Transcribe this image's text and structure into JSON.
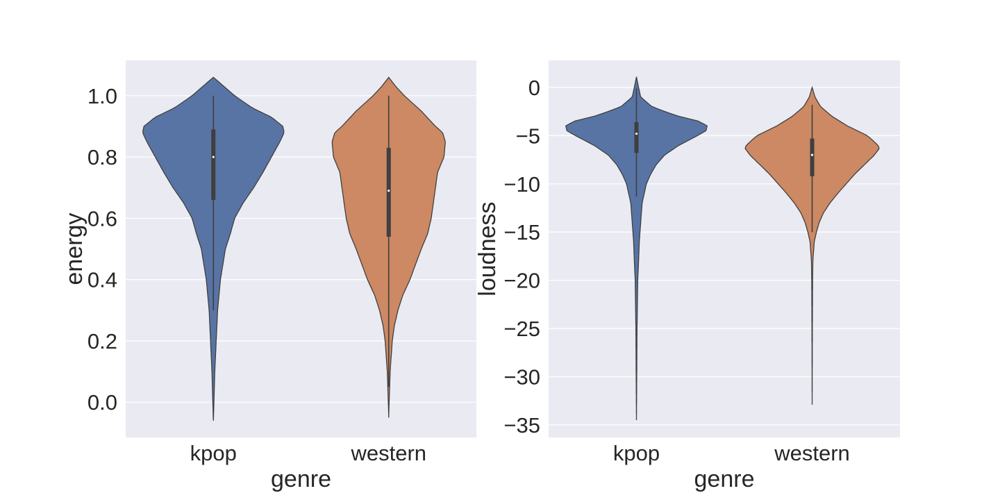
{
  "chart_data": [
    {
      "type": "violin",
      "xlabel": "genre",
      "ylabel": "energy",
      "ylim": [
        -0.115,
        1.115
      ],
      "yticks": [
        0.0,
        0.2,
        0.4,
        0.6,
        0.8,
        1.0
      ],
      "ytick_labels": [
        "0.0",
        "0.2",
        "0.4",
        "0.6",
        "0.8",
        "1.0"
      ],
      "grid": true,
      "categories": [
        "kpop",
        "western"
      ],
      "violins": [
        {
          "category": "kpop",
          "color": "#5874a4",
          "min": -0.06,
          "max": 1.06,
          "whisker_low": 0.3,
          "whisker_high": 1.0,
          "q1": 0.66,
          "median": 0.8,
          "q3": 0.89,
          "density_profile": [
            [
              -0.06,
              0.0
            ],
            [
              0.0,
              0.008
            ],
            [
              0.1,
              0.02
            ],
            [
              0.2,
              0.04
            ],
            [
              0.3,
              0.06
            ],
            [
              0.4,
              0.1
            ],
            [
              0.5,
              0.17
            ],
            [
              0.55,
              0.24
            ],
            [
              0.6,
              0.3
            ],
            [
              0.65,
              0.42
            ],
            [
              0.7,
              0.57
            ],
            [
              0.75,
              0.7
            ],
            [
              0.8,
              0.82
            ],
            [
              0.85,
              0.94
            ],
            [
              0.88,
              1.0
            ],
            [
              0.9,
              0.98
            ],
            [
              0.93,
              0.82
            ],
            [
              0.96,
              0.55
            ],
            [
              1.0,
              0.3
            ],
            [
              1.03,
              0.15
            ],
            [
              1.06,
              0.0
            ]
          ]
        },
        {
          "category": "western",
          "color": "#cc8963",
          "min": -0.05,
          "max": 1.06,
          "whisker_low": 0.05,
          "whisker_high": 1.0,
          "q1": 0.54,
          "median": 0.69,
          "q3": 0.83,
          "density_profile": [
            [
              -0.05,
              0.0
            ],
            [
              0.0,
              0.006
            ],
            [
              0.1,
              0.02
            ],
            [
              0.2,
              0.05
            ],
            [
              0.25,
              0.08
            ],
            [
              0.3,
              0.13
            ],
            [
              0.35,
              0.2
            ],
            [
              0.4,
              0.3
            ],
            [
              0.45,
              0.38
            ],
            [
              0.5,
              0.46
            ],
            [
              0.55,
              0.55
            ],
            [
              0.6,
              0.6
            ],
            [
              0.65,
              0.63
            ],
            [
              0.7,
              0.66
            ],
            [
              0.75,
              0.69
            ],
            [
              0.8,
              0.78
            ],
            [
              0.85,
              0.8
            ],
            [
              0.88,
              0.76
            ],
            [
              0.9,
              0.66
            ],
            [
              0.95,
              0.46
            ],
            [
              1.0,
              0.22
            ],
            [
              1.03,
              0.1
            ],
            [
              1.06,
              0.0
            ]
          ]
        }
      ]
    },
    {
      "type": "violin",
      "xlabel": "genre",
      "ylabel": "loudness",
      "ylim": [
        -36.3,
        2.8
      ],
      "yticks": [
        -35,
        -30,
        -25,
        -20,
        -15,
        -10,
        -5,
        0
      ],
      "ytick_labels": [
        "−35",
        "−30",
        "−25",
        "−20",
        "−15",
        "−10",
        "−5",
        "0"
      ],
      "grid": true,
      "categories": [
        "kpop",
        "western"
      ],
      "violins": [
        {
          "category": "kpop",
          "color": "#5874a4",
          "min": -34.5,
          "max": 1.1,
          "whisker_low": -11.3,
          "whisker_high": -0.1,
          "q1": -6.8,
          "median": -4.8,
          "q3": -3.6,
          "density_profile": [
            [
              -34.5,
              0.0
            ],
            [
              -30,
              0.004
            ],
            [
              -25,
              0.008
            ],
            [
              -20,
              0.018
            ],
            [
              -18,
              0.03
            ],
            [
              -16,
              0.04
            ],
            [
              -14,
              0.06
            ],
            [
              -12,
              0.08
            ],
            [
              -10,
              0.14
            ],
            [
              -9,
              0.2
            ],
            [
              -8,
              0.28
            ],
            [
              -7,
              0.4
            ],
            [
              -6,
              0.6
            ],
            [
              -5,
              0.86
            ],
            [
              -4.5,
              0.98
            ],
            [
              -4,
              1.0
            ],
            [
              -3.5,
              0.88
            ],
            [
              -3,
              0.6
            ],
            [
              -2.5,
              0.4
            ],
            [
              -2,
              0.22
            ],
            [
              -1,
              0.06
            ],
            [
              0,
              0.03
            ],
            [
              1.1,
              0.0
            ]
          ]
        },
        {
          "category": "western",
          "color": "#cc8963",
          "min": -32.9,
          "max": 0.0,
          "whisker_low": -15.0,
          "whisker_high": -1.8,
          "q1": -9.2,
          "median": -7.0,
          "q3": -5.3,
          "density_profile": [
            [
              -32.9,
              0.0
            ],
            [
              -25,
              0.003
            ],
            [
              -20,
              0.006
            ],
            [
              -18,
              0.01
            ],
            [
              -16,
              0.03
            ],
            [
              -15,
              0.06
            ],
            [
              -14,
              0.1
            ],
            [
              -13,
              0.16
            ],
            [
              -12,
              0.25
            ],
            [
              -11,
              0.36
            ],
            [
              -10,
              0.48
            ],
            [
              -9,
              0.6
            ],
            [
              -8,
              0.74
            ],
            [
              -7,
              0.88
            ],
            [
              -6.3,
              0.95
            ],
            [
              -6,
              0.93
            ],
            [
              -5,
              0.78
            ],
            [
              -4,
              0.5
            ],
            [
              -3,
              0.28
            ],
            [
              -2,
              0.12
            ],
            [
              -1,
              0.04
            ],
            [
              0,
              0.0
            ]
          ]
        }
      ]
    }
  ]
}
